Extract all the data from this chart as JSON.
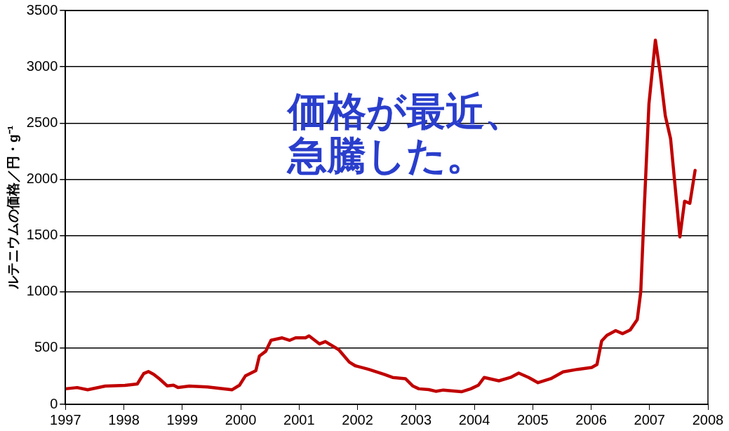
{
  "chart_data": {
    "type": "line",
    "ylabel": "ルテニウムの価格／円・g⁻¹",
    "annotations": [
      "価格が最近、",
      "急騰した。"
    ],
    "xlim": [
      1997,
      2008
    ],
    "xticks": [
      1997,
      1998,
      1999,
      2000,
      2001,
      2002,
      2003,
      2004,
      2005,
      2006,
      2007,
      2008
    ],
    "ylim": [
      0,
      3500
    ],
    "yticks": [
      0,
      500,
      1000,
      1500,
      2000,
      2500,
      3000,
      3500
    ],
    "grid": "y",
    "legend": false,
    "marker": "none",
    "line_style": "solid",
    "series": [
      {
        "color": "#c00000",
        "x": [
          1997.0,
          1997.2,
          1997.38,
          1997.68,
          1998.02,
          1998.23,
          1998.34,
          1998.42,
          1998.51,
          1998.61,
          1998.74,
          1998.85,
          1998.93,
          1999.12,
          1999.43,
          1999.85,
          1999.98,
          2000.08,
          2000.26,
          2000.32,
          2000.43,
          2000.52,
          2000.71,
          2000.84,
          2000.94,
          2001.11,
          2001.17,
          2001.35,
          2001.45,
          2001.68,
          2001.86,
          2001.96,
          2002.19,
          2002.45,
          2002.6,
          2002.82,
          2002.95,
          2003.05,
          2003.22,
          2003.34,
          2003.47,
          2003.78,
          2003.94,
          2004.07,
          2004.17,
          2004.42,
          2004.62,
          2004.76,
          2004.93,
          2005.09,
          2005.31,
          2005.52,
          2005.77,
          2006.01,
          2006.1,
          2006.18,
          2006.27,
          2006.42,
          2006.54,
          2006.67,
          2006.79,
          2006.85,
          2006.91,
          2006.99,
          2007.1,
          2007.18,
          2007.27,
          2007.36,
          2007.52,
          2007.6,
          2007.69,
          2007.78
        ],
        "values": [
          138,
          149,
          129,
          162,
          168,
          181,
          274,
          291,
          267,
          226,
          164,
          170,
          149,
          162,
          155,
          129,
          170,
          252,
          300,
          429,
          472,
          569,
          591,
          569,
          591,
          591,
          608,
          537,
          558,
          485,
          375,
          343,
          311,
          267,
          239,
          228,
          162,
          138,
          131,
          116,
          127,
          112,
          138,
          170,
          239,
          209,
          239,
          278,
          239,
          192,
          228,
          289,
          311,
          328,
          354,
          563,
          613,
          655,
          628,
          662,
          753,
          1003,
          1747,
          2672,
          3237,
          2952,
          2564,
          2362,
          1488,
          1805,
          1786,
          2079
        ]
      }
    ]
  }
}
